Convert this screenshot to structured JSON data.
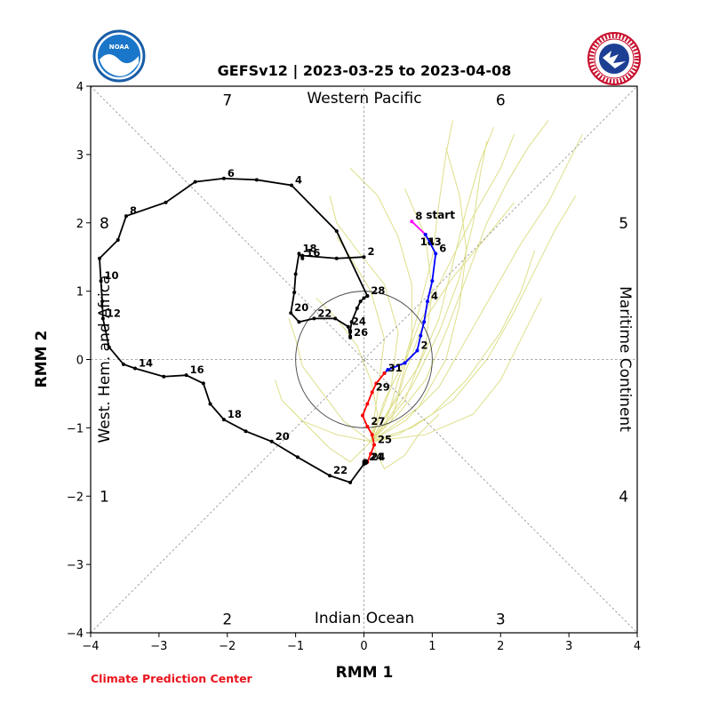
{
  "title": "GEFSv12 | 2023-03-25 to 2023-04-08",
  "footer": "Climate Prediction Center",
  "logos": [
    {
      "name": "NOAA",
      "text": "NOAA"
    },
    {
      "name": "National Weather Service",
      "text": "NATIONAL WEATHER SERVICE"
    }
  ],
  "chart_data": {
    "type": "line",
    "title": "GEFSv12 | 2023-03-25 to 2023-04-08",
    "xlabel": "RMM 1",
    "ylabel": "RMM 2",
    "xlim": [
      -4,
      4
    ],
    "ylim": [
      -4,
      4
    ],
    "xticks": [
      "−4",
      "−3",
      "−2",
      "−1",
      "0",
      "1",
      "2",
      "3",
      "4"
    ],
    "yticks": [
      "−4",
      "−3",
      "−2",
      "−1",
      "0",
      "1",
      "2",
      "3",
      "4"
    ],
    "tick_values": [
      -4,
      -3,
      -2,
      -1,
      0,
      1,
      2,
      3,
      4
    ],
    "reference_circle_radius": 1,
    "grid": "dotted diagonals and axes",
    "phase_labels": [
      {
        "text": "1",
        "x": -3.8,
        "y": -2.0
      },
      {
        "text": "2",
        "x": -2.0,
        "y": -3.8
      },
      {
        "text": "3",
        "x": 2.0,
        "y": -3.8
      },
      {
        "text": "4",
        "x": 3.8,
        "y": -2.0
      },
      {
        "text": "5",
        "x": 3.8,
        "y": 2.0
      },
      {
        "text": "6",
        "x": 2.0,
        "y": 3.8
      },
      {
        "text": "7",
        "x": -2.0,
        "y": 3.8
      },
      {
        "text": "8",
        "x": -3.8,
        "y": 2.0
      }
    ],
    "region_labels": {
      "top": "Western Pacific",
      "bottom": "Indian Ocean",
      "left": "West. Hem. and Africa",
      "right": "Maritime Continent"
    },
    "start_label": "start",
    "series": [
      {
        "color": "#000000",
        "points": [
          [
            0.0,
            1.5
          ],
          [
            -0.4,
            1.48
          ],
          [
            -0.9,
            1.52
          ],
          [
            -0.9,
            1.48
          ],
          [
            -0.95,
            1.55
          ],
          [
            -1.0,
            1.25
          ],
          [
            -1.02,
            0.98
          ],
          [
            -1.07,
            0.68
          ],
          [
            -0.95,
            0.55
          ],
          [
            -0.73,
            0.6
          ],
          [
            -0.42,
            0.6
          ],
          [
            -0.23,
            0.48
          ],
          [
            -0.2,
            0.34
          ],
          [
            -0.2,
            0.32
          ],
          [
            -0.2,
            0.4
          ],
          [
            -0.2,
            0.42
          ],
          [
            -0.18,
            0.55
          ],
          [
            -0.1,
            0.75
          ],
          [
            -0.05,
            0.85
          ],
          [
            0.0,
            0.9
          ],
          [
            0.05,
            0.93
          ],
          [
            0.05,
            0.93
          ],
          [
            -0.4,
            1.88
          ],
          [
            -1.06,
            2.55
          ],
          [
            -1.57,
            2.63
          ],
          [
            -2.05,
            2.65
          ],
          [
            -2.47,
            2.6
          ],
          [
            -2.9,
            2.3
          ],
          [
            -3.48,
            2.1
          ],
          [
            -3.6,
            1.75
          ],
          [
            -3.87,
            1.48
          ],
          [
            -3.85,
            1.15
          ],
          [
            -3.83,
            0.85
          ],
          [
            -3.82,
            0.6
          ],
          [
            -3.73,
            0.18
          ],
          [
            -3.52,
            -0.07
          ],
          [
            -3.35,
            -0.13
          ],
          [
            -2.93,
            -0.25
          ],
          [
            -2.6,
            -0.23
          ],
          [
            -2.35,
            -0.35
          ],
          [
            -2.25,
            -0.65
          ],
          [
            -2.05,
            -0.88
          ],
          [
            -1.73,
            -1.05
          ],
          [
            -1.35,
            -1.2
          ],
          [
            -0.97,
            -1.43
          ],
          [
            -0.5,
            -1.7
          ],
          [
            -0.2,
            -1.8
          ],
          [
            0.0,
            -1.53
          ],
          [
            0.02,
            -1.5
          ]
        ],
        "labels": [
          {
            "text": "2",
            "i": 0
          },
          {
            "text": "16",
            "i": 3
          },
          {
            "text": "18",
            "i": 4
          },
          {
            "text": "20",
            "i": 7
          },
          {
            "text": "22",
            "i": 9
          },
          {
            "text": "24",
            "i": 11
          },
          {
            "text": "26",
            "i": 13
          },
          {
            "text": "28",
            "i": 20
          },
          {
            "text": "4",
            "i": 23
          },
          {
            "text": "6",
            "i": 25
          },
          {
            "text": "8",
            "i": 28
          },
          {
            "text": "10",
            "i": 31
          },
          {
            "text": "12",
            "i": 33
          },
          {
            "text": "14",
            "i": 36
          },
          {
            "text": "16",
            "i": 38
          },
          {
            "text": "18",
            "i": 41
          },
          {
            "text": "20",
            "i": 43
          },
          {
            "text": "22",
            "i": 45
          },
          {
            "text": "24",
            "i": 48
          }
        ]
      },
      {
        "color": "#ff00ff",
        "points": [
          [
            0.7,
            2.02
          ],
          [
            0.9,
            1.83
          ]
        ],
        "labels": [
          {
            "text": "8",
            "i": 0
          },
          {
            "text": "14",
            "i": 1
          },
          {
            "text": "13",
            "i": 1
          }
        ]
      },
      {
        "color": "#0000ff",
        "points": [
          [
            0.9,
            1.83
          ],
          [
            1.05,
            1.55
          ],
          [
            1.0,
            1.15
          ],
          [
            0.93,
            0.85
          ],
          [
            0.88,
            0.55
          ],
          [
            0.83,
            0.35
          ],
          [
            0.78,
            0.13
          ],
          [
            0.6,
            -0.05
          ],
          [
            0.35,
            -0.15
          ],
          [
            0.3,
            -0.2
          ]
        ],
        "labels": [
          {
            "text": "6",
            "i": 1
          },
          {
            "text": "4",
            "i": 3
          },
          {
            "text": "2",
            "i": 6
          },
          {
            "text": "31",
            "i": 9
          }
        ]
      },
      {
        "color": "#ff0000",
        "points": [
          [
            0.3,
            -0.2
          ],
          [
            0.18,
            -0.35
          ],
          [
            0.12,
            -0.48
          ],
          [
            0.05,
            -0.65
          ],
          [
            -0.02,
            -0.82
          ],
          [
            0.05,
            -0.98
          ],
          [
            0.12,
            -1.1
          ],
          [
            0.15,
            -1.25
          ],
          [
            0.1,
            -1.38
          ],
          [
            0.05,
            -1.5
          ]
        ],
        "labels": [
          {
            "text": "29",
            "i": 2
          },
          {
            "text": "27",
            "i": 5
          },
          {
            "text": "25",
            "i": 7
          },
          {
            "text": "24",
            "i": 9
          }
        ]
      }
    ],
    "ensemble_color": "#dede8a",
    "ensemble": [
      [
        [
          0.1,
          -1.2
        ],
        [
          0.5,
          -0.8
        ],
        [
          0.9,
          -0.3
        ],
        [
          1.2,
          0.4
        ],
        [
          1.5,
          1.2
        ],
        [
          1.8,
          2.0
        ],
        [
          2.1,
          2.6
        ],
        [
          2.4,
          3.1
        ],
        [
          2.7,
          3.5
        ]
      ],
      [
        [
          0.1,
          -1.2
        ],
        [
          0.6,
          -0.9
        ],
        [
          1.1,
          -0.4
        ],
        [
          1.5,
          0.3
        ],
        [
          1.9,
          1.0
        ],
        [
          2.3,
          1.7
        ],
        [
          2.7,
          2.3
        ],
        [
          3.0,
          2.9
        ],
        [
          3.2,
          3.3
        ]
      ],
      [
        [
          0.1,
          -1.2
        ],
        [
          0.4,
          -0.7
        ],
        [
          0.8,
          -0.1
        ],
        [
          1.1,
          0.6
        ],
        [
          1.3,
          1.4
        ],
        [
          1.5,
          2.2
        ],
        [
          1.7,
          2.9
        ],
        [
          1.9,
          3.4
        ]
      ],
      [
        [
          0.1,
          -1.2
        ],
        [
          0.7,
          -1.0
        ],
        [
          1.3,
          -0.6
        ],
        [
          1.8,
          0.0
        ],
        [
          2.2,
          0.7
        ],
        [
          2.5,
          1.3
        ],
        [
          2.8,
          1.9
        ],
        [
          3.1,
          2.4
        ]
      ],
      [
        [
          0.1,
          -1.2
        ],
        [
          0.3,
          -0.6
        ],
        [
          0.6,
          0.0
        ],
        [
          0.8,
          0.7
        ],
        [
          1.0,
          1.5
        ],
        [
          1.1,
          2.3
        ],
        [
          1.2,
          3.0
        ],
        [
          1.3,
          3.5
        ]
      ],
      [
        [
          0.1,
          -1.2
        ],
        [
          0.5,
          -1.1
        ],
        [
          1.0,
          -0.8
        ],
        [
          1.5,
          -0.3
        ],
        [
          2.0,
          0.4
        ],
        [
          2.3,
          1.0
        ],
        [
          2.5,
          1.6
        ]
      ],
      [
        [
          0.1,
          -1.2
        ],
        [
          -0.3,
          -0.9
        ],
        [
          -0.6,
          -0.5
        ],
        [
          -0.9,
          -0.1
        ],
        [
          -1.0,
          0.3
        ],
        [
          -1.1,
          0.6
        ]
      ],
      [
        [
          0.1,
          -1.2
        ],
        [
          -0.4,
          -1.1
        ],
        [
          -0.9,
          -0.9
        ],
        [
          -1.2,
          -0.6
        ],
        [
          -1.3,
          -0.3
        ]
      ],
      [
        [
          0.1,
          -1.2
        ],
        [
          0.2,
          -0.8
        ],
        [
          0.1,
          -0.3
        ],
        [
          -0.1,
          0.2
        ],
        [
          -0.4,
          0.6
        ],
        [
          -0.7,
          0.9
        ]
      ],
      [
        [
          0.1,
          -1.2
        ],
        [
          0.4,
          -0.4
        ],
        [
          0.5,
          0.4
        ],
        [
          0.3,
          1.1
        ],
        [
          -0.1,
          1.6
        ],
        [
          -0.4,
          2.0
        ],
        [
          -0.5,
          2.4
        ]
      ],
      [
        [
          0.1,
          -1.2
        ],
        [
          0.5,
          -0.5
        ],
        [
          0.7,
          0.3
        ],
        [
          0.7,
          1.1
        ],
        [
          0.5,
          1.8
        ],
        [
          0.2,
          2.4
        ],
        [
          -0.2,
          2.8
        ]
      ],
      [
        [
          0.1,
          -1.2
        ],
        [
          0.6,
          -0.6
        ],
        [
          0.9,
          0.2
        ],
        [
          1.0,
          1.0
        ],
        [
          0.9,
          1.8
        ],
        [
          0.6,
          2.5
        ]
      ],
      [
        [
          0.1,
          -1.2
        ],
        [
          0.8,
          -0.7
        ],
        [
          1.2,
          0.0
        ],
        [
          1.4,
          0.8
        ],
        [
          1.5,
          1.6
        ],
        [
          1.4,
          2.4
        ],
        [
          1.2,
          3.1
        ]
      ],
      [
        [
          0.1,
          -1.2
        ],
        [
          0.9,
          -1.1
        ],
        [
          1.6,
          -0.8
        ],
        [
          2.0,
          -0.3
        ],
        [
          2.3,
          0.3
        ],
        [
          2.6,
          0.9
        ]
      ],
      [
        [
          0.1,
          -1.2
        ],
        [
          -0.2,
          -1.5
        ],
        [
          -0.5,
          -1.3
        ],
        [
          -0.8,
          -1.0
        ],
        [
          -1.1,
          -0.7
        ]
      ],
      [
        [
          0.1,
          -1.2
        ],
        [
          0.3,
          -1.6
        ],
        [
          0.6,
          -1.4
        ],
        [
          0.8,
          -1.1
        ],
        [
          1.1,
          -0.8
        ]
      ],
      [
        [
          0.1,
          -1.2
        ],
        [
          0.3,
          -1.0
        ],
        [
          0.5,
          -0.3
        ],
        [
          0.8,
          0.5
        ],
        [
          1.2,
          1.3
        ],
        [
          1.6,
          2.1
        ],
        [
          2.0,
          2.8
        ],
        [
          2.2,
          3.3
        ]
      ],
      [
        [
          0.1,
          -1.2
        ],
        [
          0.4,
          -0.9
        ],
        [
          0.6,
          -0.2
        ],
        [
          0.9,
          0.6
        ],
        [
          1.3,
          1.2
        ],
        [
          1.8,
          1.8
        ],
        [
          2.2,
          2.3
        ]
      ],
      [
        [
          0.1,
          -1.2
        ],
        [
          0.2,
          -0.5
        ],
        [
          0.3,
          0.3
        ],
        [
          0.1,
          1.0
        ],
        [
          -0.2,
          1.5
        ],
        [
          -0.4,
          1.8
        ]
      ],
      [
        [
          0.1,
          -1.2
        ],
        [
          0.7,
          -0.4
        ],
        [
          1.1,
          0.4
        ],
        [
          1.4,
          1.2
        ],
        [
          1.6,
          2.0
        ],
        [
          1.7,
          2.7
        ],
        [
          1.8,
          3.2
        ]
      ]
    ]
  }
}
